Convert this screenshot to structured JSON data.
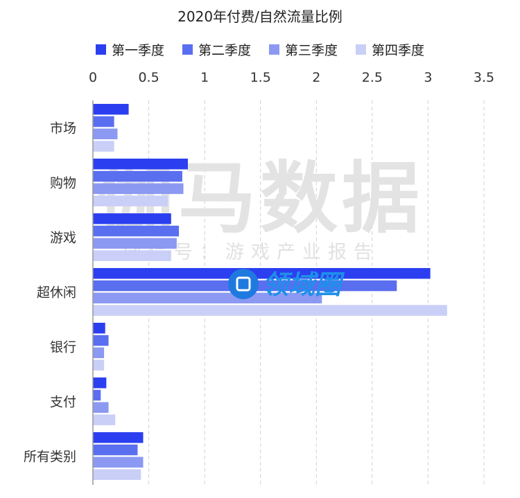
{
  "chart_data": {
    "type": "bar",
    "orientation": "horizontal",
    "title": "2020年付费/自然流量比例",
    "categories": [
      "市场",
      "购物",
      "游戏",
      "超休闲",
      "银行",
      "支付",
      "所有类别"
    ],
    "series": [
      {
        "name": "第一季度",
        "color": "#2b3ff0",
        "values": [
          0.32,
          0.85,
          0.7,
          3.02,
          0.11,
          0.12,
          0.45
        ]
      },
      {
        "name": "第二季度",
        "color": "#5a6ef0",
        "values": [
          0.19,
          0.8,
          0.77,
          2.72,
          0.14,
          0.07,
          0.4
        ]
      },
      {
        "name": "第三季度",
        "color": "#8c99f2",
        "values": [
          0.22,
          0.81,
          0.75,
          2.05,
          0.1,
          0.14,
          0.45
        ]
      },
      {
        "name": "第四季度",
        "color": "#c9cff7",
        "values": [
          0.19,
          0.67,
          0.7,
          3.17,
          0.1,
          0.2,
          0.43
        ]
      }
    ],
    "xlim": [
      0,
      3.5
    ],
    "xticks": [
      "0",
      "0.5",
      "1",
      "1.5",
      "2",
      "2.5",
      "3",
      "3.5"
    ],
    "grid": true,
    "legend_position": "top"
  },
  "watermark": {
    "main": "伽马数据",
    "sub": "微信号：游戏产业报告",
    "logo_text": "领域圈"
  }
}
